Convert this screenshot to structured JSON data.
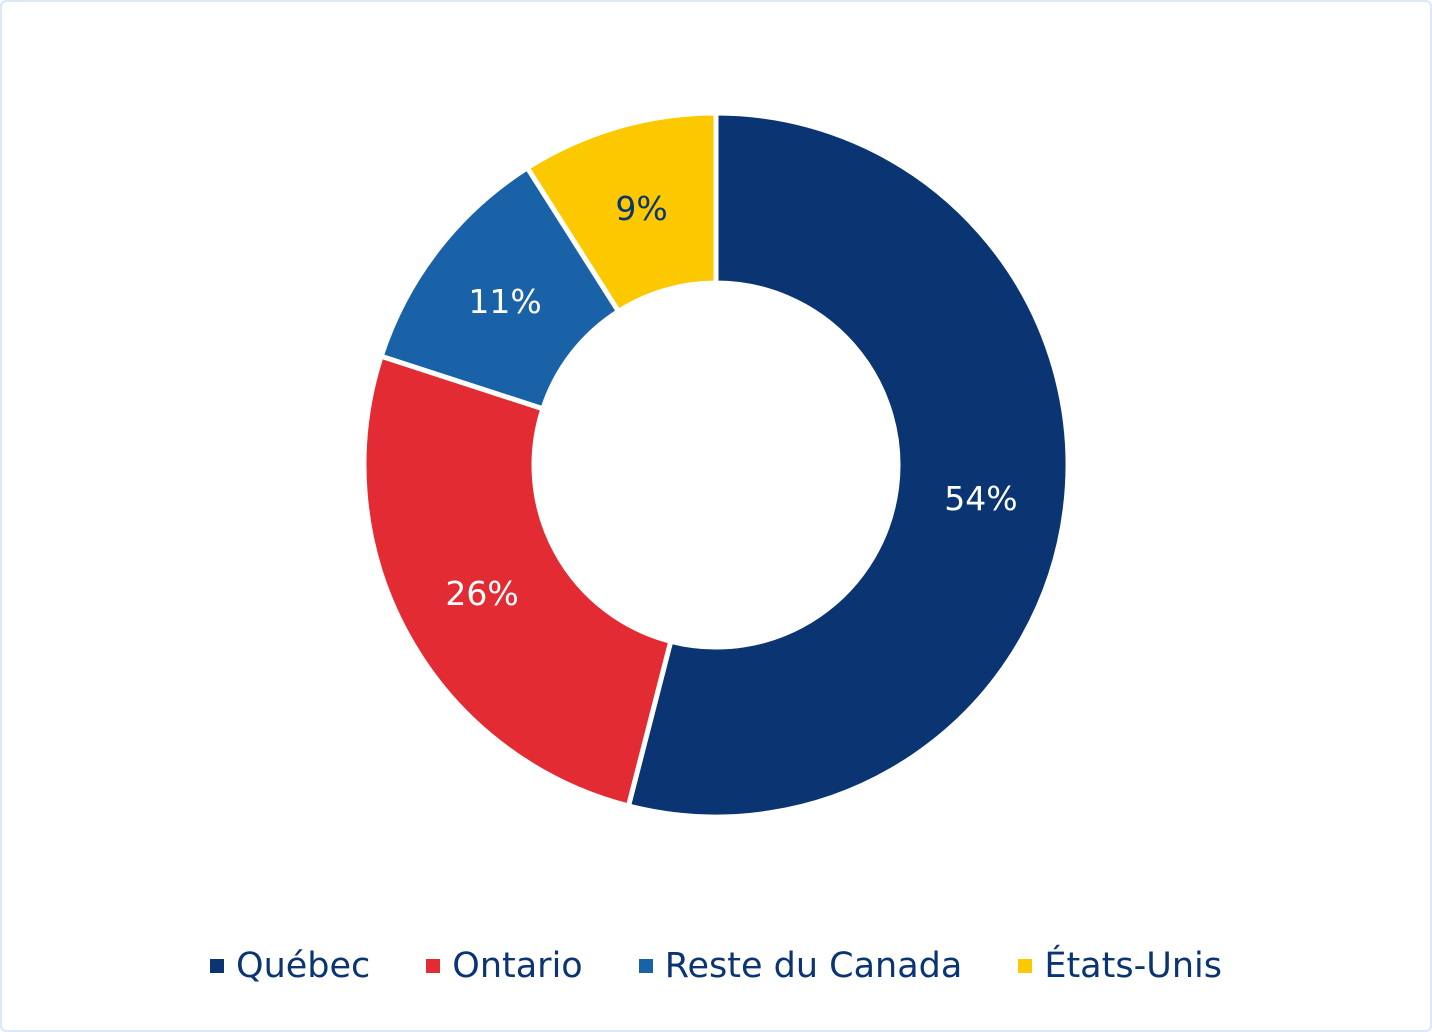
{
  "chart_data": {
    "type": "pie",
    "variant": "donut",
    "title": "",
    "categories": [
      "Québec",
      "Ontario",
      "Reste du Canada",
      "États-Unis"
    ],
    "values": [
      54,
      26,
      11,
      9
    ],
    "labels": [
      "54%",
      "26%",
      "11%",
      "9%"
    ],
    "colors": [
      "#0b3572",
      "#e32b33",
      "#1a62a8",
      "#fcc800"
    ],
    "label_colors": [
      "#ffffff",
      "#ffffff",
      "#ffffff",
      "#0b3572"
    ],
    "legend_position": "bottom",
    "start_angle": "12 o'clock",
    "direction": "clockwise"
  },
  "legend": {
    "items": [
      {
        "label": "Québec",
        "color": "#0b3572"
      },
      {
        "label": "Ontario",
        "color": "#e32b33"
      },
      {
        "label": "Reste du Canada",
        "color": "#1a62a8"
      },
      {
        "label": "États-Unis",
        "color": "#fcc800"
      }
    ]
  }
}
